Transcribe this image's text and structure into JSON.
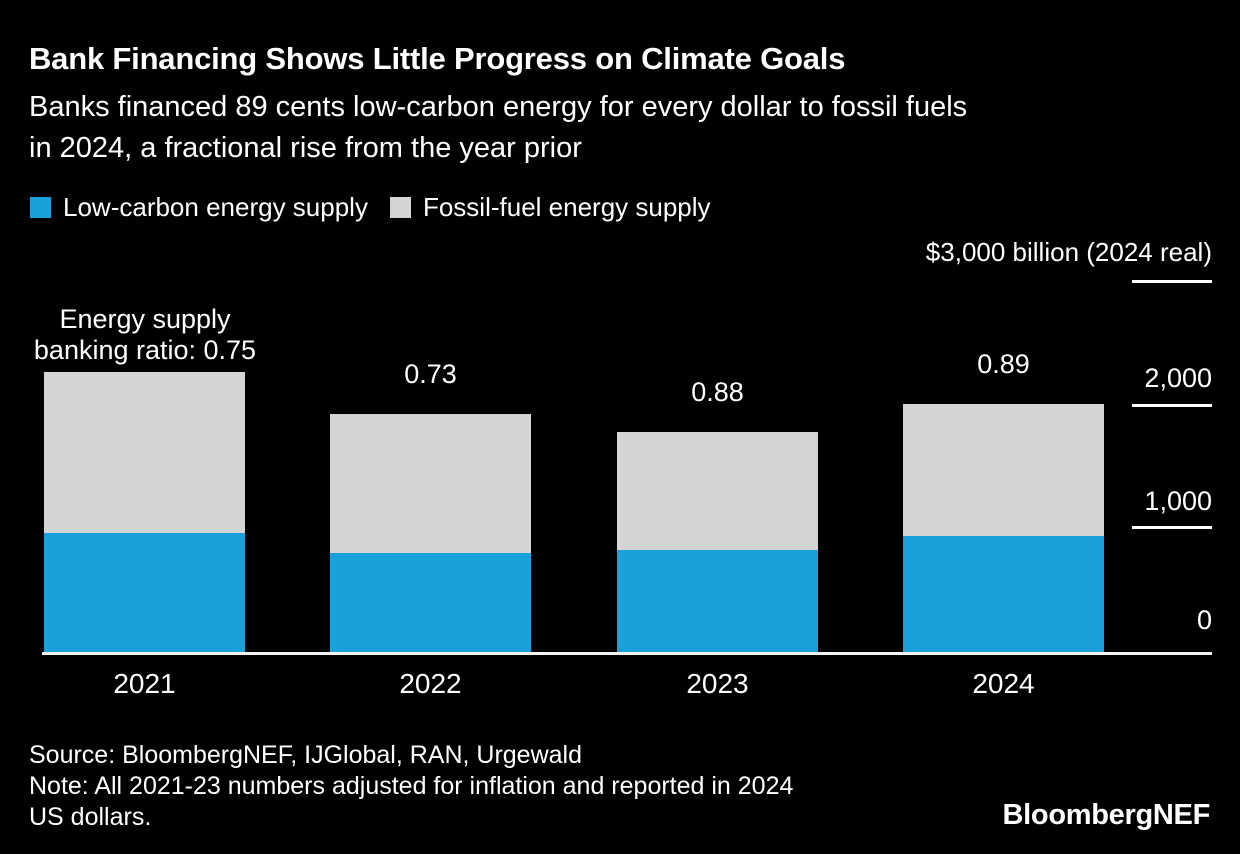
{
  "page": {
    "background": "#000000",
    "text_color": "#FFFFFF"
  },
  "header": {
    "title": "Bank Financing Shows Little Progress on Climate Goals",
    "subtitle_lines": [
      "Banks financed 89 cents low-carbon energy for every dollar to fossil fuels",
      "in 2024, a fractional rise from the year prior"
    ]
  },
  "legend": {
    "items": [
      {
        "label": "Low-carbon energy supply",
        "color": "#1AA1DC"
      },
      {
        "label": "Fossil-fuel energy supply",
        "color": "#D4D4D4"
      }
    ]
  },
  "axis": {
    "unit_label": "$3,000 billion (2024 real)",
    "max_value": 3000,
    "ticks": [
      {
        "label": "2,000",
        "value": 2000
      },
      {
        "label": "1,000",
        "value": 1000
      },
      {
        "label": "0",
        "value": 0
      }
    ]
  },
  "annotation": {
    "line1": "Energy supply",
    "line2": "banking ratio: 0.75"
  },
  "chart_data": {
    "type": "bar",
    "stacked": true,
    "title": "Bank Financing Shows Little Progress on Climate Goals",
    "categories": [
      "2021",
      "2022",
      "2023",
      "2024"
    ],
    "series": [
      {
        "name": "Low-carbon energy supply",
        "color": "#1AA1DC",
        "values": [
          975,
          815,
          840,
          950
        ]
      },
      {
        "name": "Fossil-fuel energy supply",
        "color": "#D4D4D4",
        "values": [
          1300,
          1120,
          950,
          1065
        ]
      }
    ],
    "ratio_labels": [
      "0.75",
      "0.73",
      "0.88",
      "0.89"
    ],
    "ratio_label_name": "Energy supply banking ratio",
    "units": "$ billion (2024 real)",
    "ylim": [
      0,
      3000
    ],
    "yticks": [
      0,
      1000,
      2000,
      3000
    ],
    "axis_side": "right",
    "grid": false,
    "legend_position": "top-left"
  },
  "footer": {
    "source": "Source: BloombergNEF, IJGlobal, RAN, Urgewald",
    "note_lines": [
      "Note: All 2021-23 numbers adjusted for inflation and reported in 2024",
      "US dollars."
    ],
    "logo": "BloombergNEF"
  }
}
